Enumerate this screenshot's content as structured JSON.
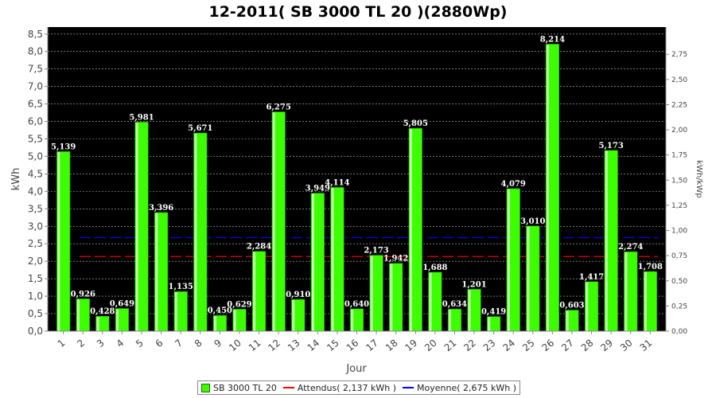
{
  "chart_data": {
    "type": "bar",
    "title": "12-2011( SB 3000 TL 20 )(2880Wp)",
    "xlabel": "Jour",
    "ylabel": "kWh",
    "y2label": "kWh/kWp",
    "categories": [
      "1",
      "2",
      "3",
      "4",
      "5",
      "6",
      "7",
      "8",
      "9",
      "10",
      "11",
      "12",
      "13",
      "14",
      "15",
      "16",
      "17",
      "18",
      "19",
      "20",
      "21",
      "22",
      "23",
      "24",
      "25",
      "26",
      "27",
      "28",
      "29",
      "30",
      "31"
    ],
    "series": [
      {
        "name": "SB 3000 TL 20",
        "values": [
          5.139,
          0.926,
          0.428,
          0.649,
          5.981,
          3.396,
          1.135,
          5.671,
          0.45,
          0.629,
          2.284,
          6.275,
          0.91,
          3.949,
          4.114,
          0.64,
          2.173,
          1.942,
          5.805,
          1.688,
          0.634,
          1.201,
          0.419,
          4.079,
          3.01,
          8.214,
          0.603,
          1.417,
          5.173,
          2.274,
          1.708
        ],
        "labels": [
          "5,139",
          "0,926",
          "0,428",
          "0,649",
          "5,981",
          "3,396",
          "1,135",
          "5,671",
          "0,450",
          "0,629",
          "2,284",
          "6,275",
          "0,910",
          "3,949",
          "4,114",
          "0,640",
          "2,173",
          "1,942",
          "5,805",
          "1,688",
          "0,634",
          "1,201",
          "0,419",
          "4,079",
          "3,010",
          "8,214",
          "0,603",
          "1,417",
          "5,173",
          "2,274",
          "1,708"
        ],
        "color": "#3cff00"
      }
    ],
    "reference_lines": [
      {
        "name": "Attendus",
        "value": 2.137,
        "color": "#ff0000",
        "style": "dashed"
      },
      {
        "name": "Moyenne",
        "value": 2.675,
        "color": "#0000ff",
        "style": "dashed"
      }
    ],
    "ylim": [
      0,
      8.7
    ],
    "y_ticks": [
      "0,0",
      "0,5",
      "1,0",
      "1,5",
      "2,0",
      "2,5",
      "3,0",
      "3,5",
      "4,0",
      "4,5",
      "5,0",
      "5,5",
      "6,0",
      "6,5",
      "7,0",
      "7,5",
      "8,0",
      "8,5"
    ],
    "y2_ticks": [
      "0,00",
      "0,25",
      "0,50",
      "0,75",
      "1,00",
      "1,25",
      "1,50",
      "1,75",
      "2,00",
      "2,25",
      "2,50",
      "2,75"
    ],
    "y2_scale_wp": 2880,
    "grid": true,
    "legend_position": "bottom",
    "plot_background": "#000000"
  },
  "legend": {
    "series_label": "SB 3000 TL 20",
    "expected_label": "Attendus( 2,137 kWh )",
    "average_label": "Moyenne( 2,675 kWh )"
  }
}
